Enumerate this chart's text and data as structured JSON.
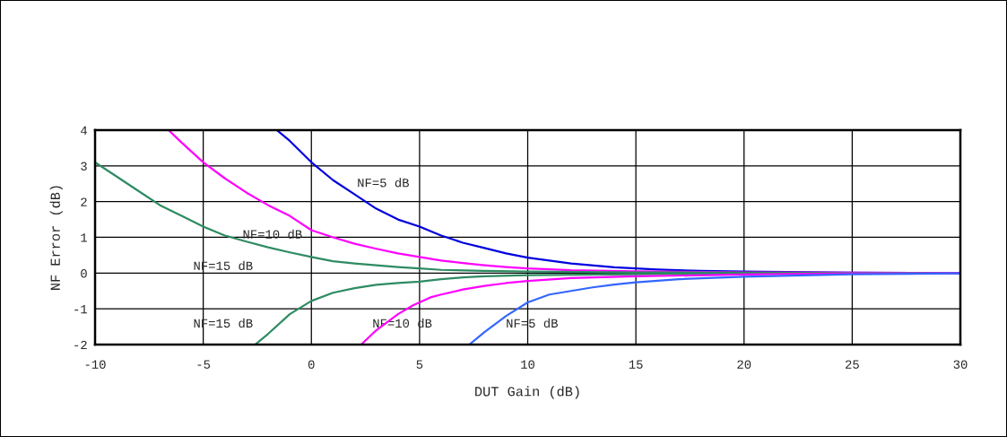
{
  "chart_data": {
    "type": "line",
    "xlabel": "DUT Gain (dB)",
    "ylabel": "NF Error (dB)",
    "xlim": [
      -10,
      30
    ],
    "xticks": [
      -10,
      -5,
      0,
      5,
      10,
      15,
      20,
      25,
      30
    ],
    "ylim": [
      -2,
      4
    ],
    "yticks": [
      -2,
      -1,
      0,
      1,
      2,
      3,
      4
    ],
    "grid": true,
    "marker": "none",
    "line_style": "solid",
    "series": [
      {
        "color": "#0000dd",
        "x": [
          -1.6,
          -1,
          0,
          1,
          2,
          3,
          4,
          5,
          6,
          7,
          8,
          9,
          10,
          12,
          14,
          16,
          18,
          20,
          25,
          30
        ],
        "values": [
          4,
          3.7,
          3.1,
          2.6,
          2.2,
          1.8,
          1.5,
          1.3,
          1.05,
          0.85,
          0.7,
          0.55,
          0.43,
          0.27,
          0.16,
          0.1,
          0.06,
          0.04,
          0.01,
          0
        ]
      },
      {
        "color": "#ff00ff",
        "x": [
          -6.6,
          -6,
          -5,
          -4,
          -3,
          -2,
          -1,
          0,
          1,
          2,
          3,
          4,
          5,
          6,
          7,
          8,
          9,
          10,
          12,
          15,
          20,
          25,
          30
        ],
        "values": [
          4,
          3.65,
          3.1,
          2.65,
          2.25,
          1.9,
          1.6,
          1.2,
          1.0,
          0.82,
          0.68,
          0.55,
          0.45,
          0.35,
          0.28,
          0.22,
          0.17,
          0.13,
          0.08,
          0.05,
          0.02,
          0.01,
          0
        ]
      },
      {
        "color": "#2e8b62",
        "x": [
          -10,
          -9,
          -8,
          -7,
          -6,
          -5,
          -4,
          -3,
          -2,
          -1,
          0,
          1,
          2,
          3,
          4,
          5,
          6,
          8,
          10,
          15,
          20,
          30
        ],
        "values": [
          3.1,
          2.7,
          2.3,
          1.9,
          1.6,
          1.3,
          1.05,
          0.88,
          0.72,
          0.58,
          0.45,
          0.33,
          0.27,
          0.22,
          0.17,
          0.13,
          0.09,
          0.06,
          0.04,
          0.02,
          0.01,
          0
        ]
      },
      {
        "color": "#2e8b62",
        "x": [
          -2.6,
          -2,
          -1,
          0,
          1,
          2,
          3,
          4,
          5,
          6,
          7,
          8,
          10,
          15,
          20,
          30
        ],
        "values": [
          -2,
          -1.7,
          -1.15,
          -0.78,
          -0.55,
          -0.42,
          -0.33,
          -0.28,
          -0.24,
          -0.17,
          -0.12,
          -0.09,
          -0.06,
          -0.03,
          -0.01,
          0
        ]
      },
      {
        "color": "#ff00ff",
        "x": [
          2.3,
          3,
          4,
          4.7,
          5.5,
          6,
          7,
          8,
          9,
          10,
          12,
          15,
          20,
          25,
          30
        ],
        "values": [
          -2,
          -1.6,
          -1.15,
          -0.9,
          -0.68,
          -0.6,
          -0.46,
          -0.36,
          -0.28,
          -0.22,
          -0.14,
          -0.09,
          -0.04,
          -0.01,
          0
        ]
      },
      {
        "color": "#3366ff",
        "x": [
          7.3,
          8,
          9,
          10,
          11,
          12,
          13,
          14,
          15,
          17,
          20,
          25,
          30
        ],
        "values": [
          -2,
          -1.65,
          -1.2,
          -0.82,
          -0.6,
          -0.5,
          -0.4,
          -0.32,
          -0.26,
          -0.17,
          -0.1,
          -0.03,
          -0.01
        ]
      }
    ],
    "annotations": [
      "NF=5 dB",
      "NF=10 dB",
      "NF=15 dB",
      "NF=15 dB",
      "NF=10 dB",
      "NF=5 dB"
    ]
  }
}
